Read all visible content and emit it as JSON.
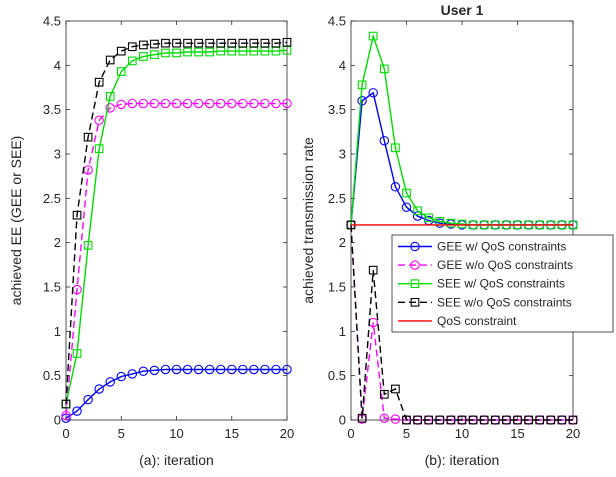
{
  "chart_data": [
    {
      "type": "line",
      "title": "",
      "xlabel": "(a): iteration",
      "ylabel": "achieved EE (GEE or SEE)",
      "xlim": [
        0,
        20
      ],
      "ylim": [
        0,
        4.5
      ],
      "xticks": [
        0,
        5,
        10,
        15,
        20
      ],
      "yticks": [
        0,
        0.5,
        1,
        1.5,
        2,
        2.5,
        3,
        3.5,
        4,
        4.5
      ],
      "xtick_labels": [
        "0",
        "5",
        "10",
        "15",
        "20"
      ],
      "ytick_labels": [
        "0",
        "0.5",
        "1",
        "1.5",
        "2",
        "2.5",
        "3",
        "3.5",
        "4",
        "4.5"
      ],
      "grid": false,
      "x": [
        0,
        1,
        2,
        3,
        4,
        5,
        6,
        7,
        8,
        9,
        10,
        11,
        12,
        13,
        14,
        15,
        16,
        17,
        18,
        19,
        20
      ],
      "series": [
        {
          "key": "gee_qos",
          "color": "#0000ff",
          "dash": "solid",
          "marker": "circle",
          "values": [
            0.02,
            0.1,
            0.23,
            0.35,
            0.43,
            0.49,
            0.52,
            0.55,
            0.56,
            0.57,
            0.57,
            0.57,
            0.57,
            0.57,
            0.57,
            0.57,
            0.57,
            0.57,
            0.57,
            0.57,
            0.57
          ]
        },
        {
          "key": "gee_noqos",
          "color": "#ff00ff",
          "dash": "dashed",
          "marker": "circle",
          "values": [
            0.05,
            1.47,
            2.82,
            3.38,
            3.52,
            3.56,
            3.57,
            3.57,
            3.57,
            3.57,
            3.57,
            3.57,
            3.57,
            3.57,
            3.57,
            3.57,
            3.57,
            3.57,
            3.57,
            3.57,
            3.57
          ]
        },
        {
          "key": "see_qos",
          "color": "#00dd00",
          "dash": "solid",
          "marker": "square",
          "values": [
            0.18,
            0.75,
            1.97,
            3.06,
            3.65,
            3.93,
            4.05,
            4.1,
            4.12,
            4.14,
            4.14,
            4.15,
            4.15,
            4.15,
            4.16,
            4.16,
            4.16,
            4.16,
            4.16,
            4.16,
            4.17
          ]
        },
        {
          "key": "see_noqos",
          "color": "#000000",
          "dash": "dashed",
          "marker": "square",
          "values": [
            0.18,
            2.31,
            3.19,
            3.81,
            4.06,
            4.16,
            4.21,
            4.23,
            4.24,
            4.25,
            4.25,
            4.25,
            4.25,
            4.25,
            4.25,
            4.25,
            4.25,
            4.25,
            4.25,
            4.25,
            4.26
          ]
        }
      ]
    },
    {
      "type": "line",
      "title": "User 1",
      "xlabel": "(b): iteration",
      "ylabel": "achieved transmission rate",
      "xlim": [
        0,
        20
      ],
      "ylim": [
        0,
        4.5
      ],
      "xticks": [
        0,
        5,
        10,
        15,
        20
      ],
      "yticks": [
        0,
        0.5,
        1,
        1.5,
        2,
        2.5,
        3,
        3.5,
        4,
        4.5
      ],
      "xtick_labels": [
        "0",
        "5",
        "10",
        "15",
        "20"
      ],
      "ytick_labels": [
        "0",
        "0.5",
        "1",
        "1.5",
        "2",
        "2.5",
        "3",
        "3.5",
        "4",
        "4.5"
      ],
      "grid": false,
      "legend_position": "center-right",
      "x": [
        0,
        1,
        2,
        3,
        4,
        5,
        6,
        7,
        8,
        9,
        10,
        11,
        12,
        13,
        14,
        15,
        16,
        17,
        18,
        19,
        20
      ],
      "series": [
        {
          "name": "GEE w/ QoS constraints",
          "color": "#0000ff",
          "dash": "solid",
          "marker": "circle",
          "values": [
            2.2,
            3.6,
            3.69,
            3.15,
            2.63,
            2.4,
            2.3,
            2.25,
            2.22,
            2.21,
            2.2,
            2.2,
            2.2,
            2.2,
            2.2,
            2.2,
            2.2,
            2.2,
            2.2,
            2.2,
            2.2
          ]
        },
        {
          "name": "GEE w/o QoS constraints",
          "color": "#ff00ff",
          "dash": "dashed",
          "marker": "circle",
          "values": [
            2.2,
            0.01,
            1.1,
            0.02,
            0.01,
            0.0,
            0.0,
            0.0,
            0.0,
            0.0,
            0.0,
            0.0,
            0.0,
            0.0,
            0.0,
            0.0,
            0.0,
            0.0,
            0.0,
            0.0,
            0.0
          ]
        },
        {
          "name": "SEE w/ QoS constraints",
          "color": "#00dd00",
          "dash": "solid",
          "marker": "square",
          "values": [
            2.2,
            3.78,
            4.33,
            3.96,
            3.07,
            2.56,
            2.36,
            2.28,
            2.24,
            2.22,
            2.21,
            2.2,
            2.2,
            2.2,
            2.2,
            2.2,
            2.2,
            2.2,
            2.2,
            2.2,
            2.2
          ]
        },
        {
          "name": "SEE w/o QoS constraints",
          "color": "#000000",
          "dash": "dashed",
          "marker": "square",
          "values": [
            2.2,
            0.02,
            1.69,
            0.29,
            0.35,
            0.0,
            0.0,
            0.0,
            0.0,
            0.0,
            0.0,
            0.0,
            0.0,
            0.0,
            0.0,
            0.0,
            0.0,
            0.0,
            0.0,
            0.0,
            0.0
          ]
        },
        {
          "name": "QoS constraint",
          "color": "#ff0000",
          "dash": "solid",
          "marker": "none",
          "values": [
            2.2,
            2.2,
            2.2,
            2.2,
            2.2,
            2.2,
            2.2,
            2.2,
            2.2,
            2.2,
            2.2,
            2.2,
            2.2,
            2.2,
            2.2,
            2.2,
            2.2,
            2.2,
            2.2,
            2.2,
            2.2
          ]
        }
      ]
    }
  ]
}
